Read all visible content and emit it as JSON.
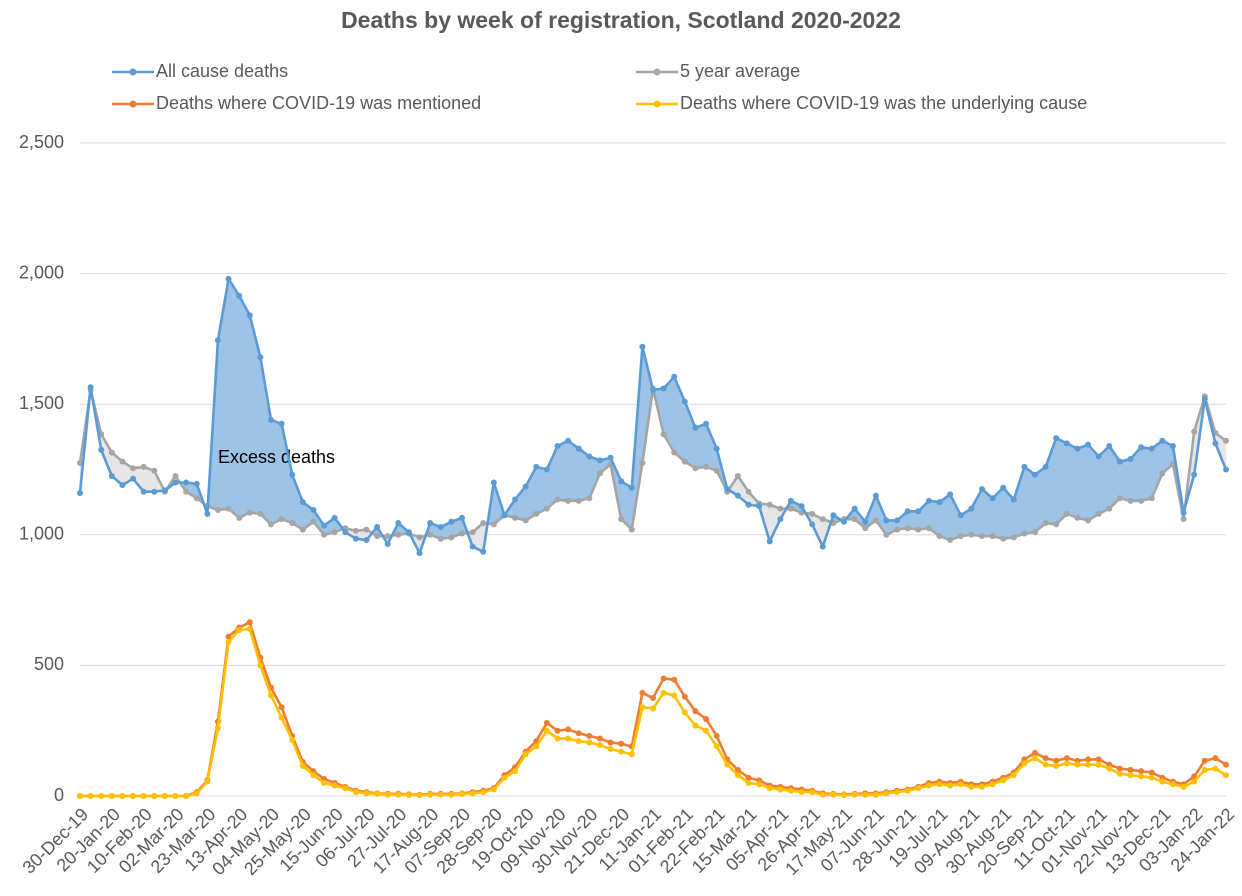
{
  "chart_data": {
    "type": "line",
    "title": "Deaths by week of registration, Scotland 2020-2022",
    "annotations": [
      "Excess deaths"
    ],
    "categories": [
      "30-Dec-19",
      null,
      null,
      "20-Jan-20",
      null,
      null,
      "10-Feb-20",
      null,
      null,
      "02-Mar-20",
      null,
      null,
      "23-Mar-20",
      null,
      null,
      "13-Apr-20",
      null,
      null,
      "04-May-20",
      null,
      null,
      "25-May-20",
      null,
      null,
      "15-Jun-20",
      null,
      null,
      "06-Jul-20",
      null,
      null,
      "27-Jul-20",
      null,
      null,
      "17-Aug-20",
      null,
      null,
      "07-Sep-20",
      null,
      null,
      "28-Sep-20",
      null,
      null,
      "19-Oct-20",
      null,
      null,
      "09-Nov-20",
      null,
      null,
      "30-Nov-20",
      null,
      null,
      "21-Dec-20",
      null,
      null,
      "11-Jan-21",
      null,
      null,
      "01-Feb-21",
      null,
      null,
      "22-Feb-21",
      null,
      null,
      "15-Mar-21",
      null,
      null,
      "05-Apr-21",
      null,
      null,
      "26-Apr-21",
      null,
      null,
      "17-May-21",
      null,
      null,
      "07-Jun-21",
      null,
      null,
      "28-Jun-21",
      null,
      null,
      "19-Jul-21",
      null,
      null,
      "09-Aug-21",
      null,
      null,
      "30-Aug-21",
      null,
      null,
      "20-Sep-21",
      null,
      null,
      "11-Oct-21",
      null,
      null,
      "01-Nov-21",
      null,
      null,
      "22-Nov-21",
      null,
      null,
      "13-Dec-21",
      null,
      null,
      "03-Jan-22",
      null,
      null,
      "24-Jan-22"
    ],
    "series": [
      {
        "name": "All cause deaths",
        "color": "#5b9bd5",
        "values": [
          1160,
          1565,
          1325,
          1225,
          1190,
          1215,
          1165,
          1165,
          1170,
          1200,
          1200,
          1195,
          1080,
          1745,
          1980,
          1915,
          1840,
          1680,
          1440,
          1425,
          1230,
          1125,
          1095,
          1035,
          1065,
          1010,
          985,
          980,
          1030,
          965,
          1045,
          1010,
          930,
          1045,
          1030,
          1050,
          1065,
          955,
          935,
          1200,
          1075,
          1135,
          1185,
          1260,
          1250,
          1340,
          1360,
          1330,
          1300,
          1285,
          1295,
          1205,
          1180,
          1720,
          1555,
          1560,
          1605,
          1510,
          1410,
          1425,
          1330,
          1175,
          1150,
          1115,
          1110,
          975,
          1060,
          1130,
          1110,
          1040,
          955,
          1075,
          1050,
          1100,
          1050,
          1150,
          1055,
          1055,
          1090,
          1090,
          1130,
          1125,
          1155,
          1075,
          1100,
          1175,
          1140,
          1180,
          1135,
          1260,
          1230,
          1260,
          1370,
          1350,
          1330,
          1345,
          1300,
          1340,
          1280,
          1290,
          1335,
          1330,
          1360,
          1340,
          1085,
          1230,
          1520,
          1350,
          1250
        ]
      },
      {
        "name": "5 year average",
        "color": "#a5a5a5",
        "values": [
          1275,
          1555,
          1385,
          1315,
          1280,
          1255,
          1260,
          1245,
          1165,
          1225,
          1165,
          1140,
          1110,
          1095,
          1100,
          1065,
          1085,
          1080,
          1040,
          1060,
          1045,
          1020,
          1050,
          1000,
          1010,
          1025,
          1015,
          1020,
          995,
          995,
          1000,
          1005,
          990,
          1000,
          985,
          990,
          1005,
          1010,
          1045,
          1040,
          1075,
          1065,
          1055,
          1080,
          1100,
          1135,
          1130,
          1130,
          1140,
          1235,
          1270,
          1060,
          1020,
          1275,
          1560,
          1385,
          1315,
          1280,
          1255,
          1260,
          1245,
          1165,
          1225,
          1165,
          1120,
          1115,
          1100,
          1100,
          1085,
          1080,
          1060,
          1045,
          1060,
          1060,
          1025,
          1055,
          1000,
          1020,
          1025,
          1020,
          1025,
          995,
          980,
          995,
          1000,
          995,
          995,
          985,
          990,
          1005,
          1010,
          1045,
          1040,
          1080,
          1065,
          1055,
          1080,
          1100,
          1140,
          1130,
          1130,
          1140,
          1235,
          1270,
          1060,
          1395,
          1530,
          1390,
          1360
        ]
      },
      {
        "name": "Deaths where COVID-19 was mentioned",
        "color": "#ed7d31",
        "values": [
          0,
          0,
          0,
          0,
          0,
          0,
          0,
          0,
          0,
          0,
          0,
          15,
          60,
          285,
          610,
          645,
          665,
          530,
          415,
          340,
          230,
          130,
          95,
          65,
          50,
          35,
          20,
          15,
          10,
          8,
          8,
          6,
          5,
          8,
          8,
          8,
          10,
          15,
          20,
          30,
          80,
          110,
          170,
          210,
          280,
          250,
          255,
          240,
          230,
          220,
          205,
          200,
          190,
          395,
          375,
          450,
          445,
          380,
          325,
          295,
          230,
          140,
          100,
          70,
          60,
          40,
          35,
          30,
          25,
          20,
          10,
          8,
          6,
          8,
          10,
          10,
          15,
          20,
          25,
          35,
          50,
          55,
          50,
          55,
          45,
          45,
          55,
          70,
          90,
          140,
          165,
          145,
          135,
          145,
          135,
          140,
          140,
          120,
          105,
          100,
          95,
          90,
          70,
          55,
          45,
          75,
          135,
          145,
          120
        ]
      },
      {
        "name": "Deaths where COVID-19 was the underlying cause",
        "color": "#ffc000",
        "values": [
          0,
          0,
          0,
          0,
          0,
          0,
          0,
          0,
          0,
          0,
          0,
          10,
          55,
          260,
          590,
          635,
          640,
          500,
          385,
          300,
          215,
          115,
          80,
          50,
          40,
          30,
          15,
          10,
          8,
          5,
          5,
          4,
          3,
          5,
          5,
          5,
          8,
          10,
          15,
          25,
          70,
          95,
          160,
          190,
          250,
          220,
          220,
          210,
          205,
          195,
          180,
          170,
          160,
          340,
          335,
          395,
          385,
          320,
          270,
          250,
          190,
          120,
          80,
          50,
          45,
          30,
          25,
          20,
          15,
          15,
          5,
          5,
          4,
          5,
          5,
          5,
          10,
          15,
          20,
          30,
          40,
          45,
          40,
          45,
          35,
          35,
          45,
          60,
          80,
          125,
          145,
          120,
          115,
          125,
          120,
          120,
          120,
          105,
          85,
          80,
          75,
          70,
          55,
          45,
          35,
          55,
          100,
          105,
          80
        ]
      }
    ],
    "excess_fill": {
      "above": "#9dc3e6",
      "below": "#e7e6e6"
    },
    "ylim": [
      0,
      2500
    ],
    "yticks": [
      0,
      500,
      {
        "value": 1000,
        "label": "1,000"
      },
      {
        "value": 1500,
        "label": "1,500"
      },
      {
        "value": 2000,
        "label": "2,000"
      },
      {
        "value": 2500,
        "label": "2,500"
      }
    ],
    "grid": true,
    "legend": "top"
  }
}
